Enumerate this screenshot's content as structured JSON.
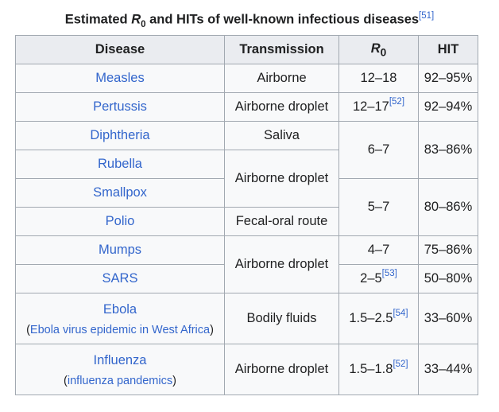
{
  "caption": {
    "prefix": "Estimated ",
    "r": "R",
    "sub": "0",
    "suffix": " and HITs of well-known infectious diseases",
    "ref": "[51]"
  },
  "headers": {
    "disease": "Disease",
    "transmission": "Transmission",
    "r0_r": "R",
    "r0_sub": "0",
    "hit": "HIT"
  },
  "rows": [
    {
      "disease": "Measles",
      "transmission": "Airborne",
      "r0": "12–18",
      "hit": "92–95%"
    },
    {
      "disease": "Pertussis",
      "transmission": "Airborne droplet",
      "r0": "12–17",
      "r0_ref": "[52]",
      "hit": "92–94%"
    },
    {
      "disease": "Diphtheria",
      "transmission": "Saliva",
      "r0": "6–7",
      "hit": "83–86%"
    },
    {
      "disease": "Rubella",
      "transmission": "Airborne droplet"
    },
    {
      "disease": "Smallpox",
      "r0": "5–7",
      "hit": "80–86%"
    },
    {
      "disease": "Polio",
      "transmission": "Fecal-oral route"
    },
    {
      "disease": "Mumps",
      "transmission": "Airborne droplet",
      "r0": "4–7",
      "hit": "75–86%"
    },
    {
      "disease": "SARS",
      "r0": "2–5",
      "r0_ref": "[53]",
      "hit": "50–80%"
    },
    {
      "disease": "Ebola",
      "note_open": "(",
      "note": "Ebola virus epidemic in West Africa",
      "note_close": ")",
      "transmission": "Bodily fluids",
      "r0": "1.5–2.5",
      "r0_ref": "[54]",
      "hit": "33–60%"
    },
    {
      "disease": "Influenza",
      "note_open": "(",
      "note": "influenza pandemics",
      "note_close": ")",
      "transmission": "Airborne droplet",
      "r0": "1.5–1.8",
      "r0_ref": "[52]",
      "hit": "33–44%"
    }
  ]
}
